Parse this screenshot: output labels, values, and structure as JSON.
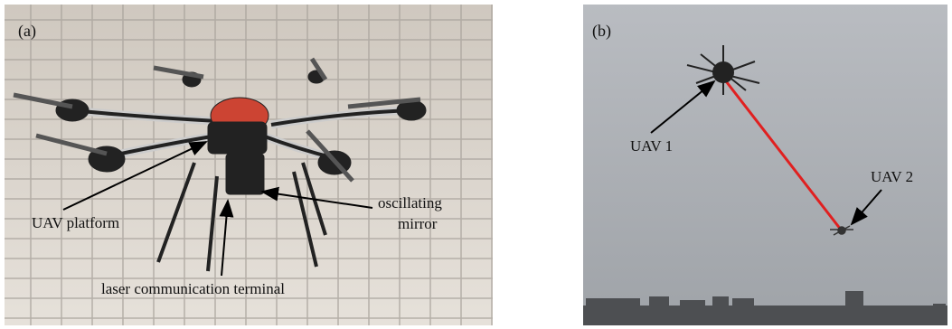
{
  "panel_a": {
    "label": "(a)",
    "platform": "UAV platform",
    "mirror": [
      "oscillating",
      "mirror"
    ],
    "terminal": "laser communication terminal"
  },
  "panel_b": {
    "label": "(b)",
    "uav1": "UAV 1",
    "uav2": "UAV 2"
  }
}
